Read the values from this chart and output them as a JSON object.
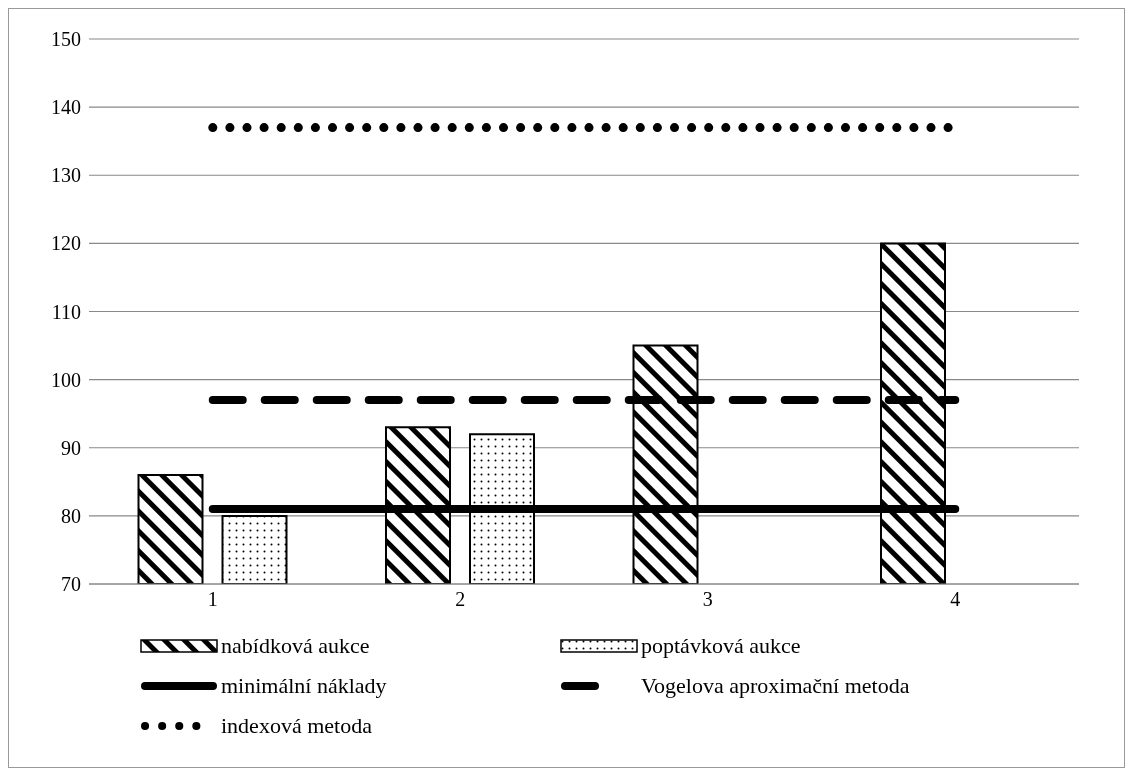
{
  "chart_data": {
    "type": "bar",
    "categories": [
      "1",
      "2",
      "3",
      "4"
    ],
    "series": [
      {
        "name": "nabídková aukce",
        "color": "#000000",
        "values": [
          86,
          93,
          105,
          120
        ]
      },
      {
        "name": "poptávková aukce",
        "color": "#000000",
        "values": [
          80,
          92,
          null,
          null
        ]
      },
      {
        "name": "minimální náklady",
        "type": "line",
        "line_style": "solid",
        "color": "#000000",
        "values": [
          81,
          81,
          81,
          81
        ]
      },
      {
        "name": "Vogelova aproximační metoda",
        "type": "line",
        "line_style": "dashed",
        "color": "#000000",
        "values": [
          97,
          97,
          97,
          97
        ]
      },
      {
        "name": "indexová metoda",
        "type": "line",
        "line_style": "dotted",
        "color": "#000000",
        "values": [
          137,
          137,
          137,
          137
        ]
      }
    ],
    "ylim": [
      70,
      150
    ],
    "yticks": [
      70,
      80,
      90,
      100,
      110,
      120,
      130,
      140,
      150
    ],
    "grid": "y",
    "legend": "bottom"
  }
}
